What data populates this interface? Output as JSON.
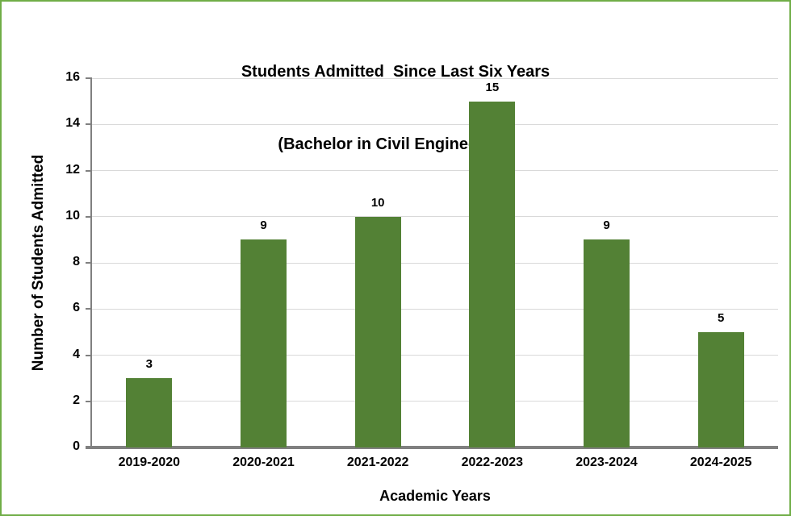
{
  "chart_data": {
    "type": "bar",
    "title_lines": [
      "Students Admitted  Since Last Six Years",
      "(Bachelor in Civil Engineering)"
    ],
    "categories": [
      "2019-2020",
      "2020-2021",
      "2021-2022",
      "2022-2023",
      "2023-2024",
      "2024-2025"
    ],
    "values": [
      3,
      9,
      10,
      15,
      9,
      5
    ],
    "data_labels": [
      "3",
      "9",
      "10",
      "15",
      "9",
      "5"
    ],
    "xlabel": "Academic Years",
    "ylabel": "Number of Students Admitted",
    "ylim": [
      0,
      16
    ],
    "yticks": [
      0,
      2,
      4,
      6,
      8,
      10,
      12,
      14,
      16
    ],
    "grid": true,
    "legend": "none",
    "colors": {
      "bar": "#538135",
      "gridline": "#d9d9d9",
      "axis": "#808080",
      "frame_border": "#70ad47",
      "text": "#000000",
      "background": "#ffffff"
    }
  }
}
